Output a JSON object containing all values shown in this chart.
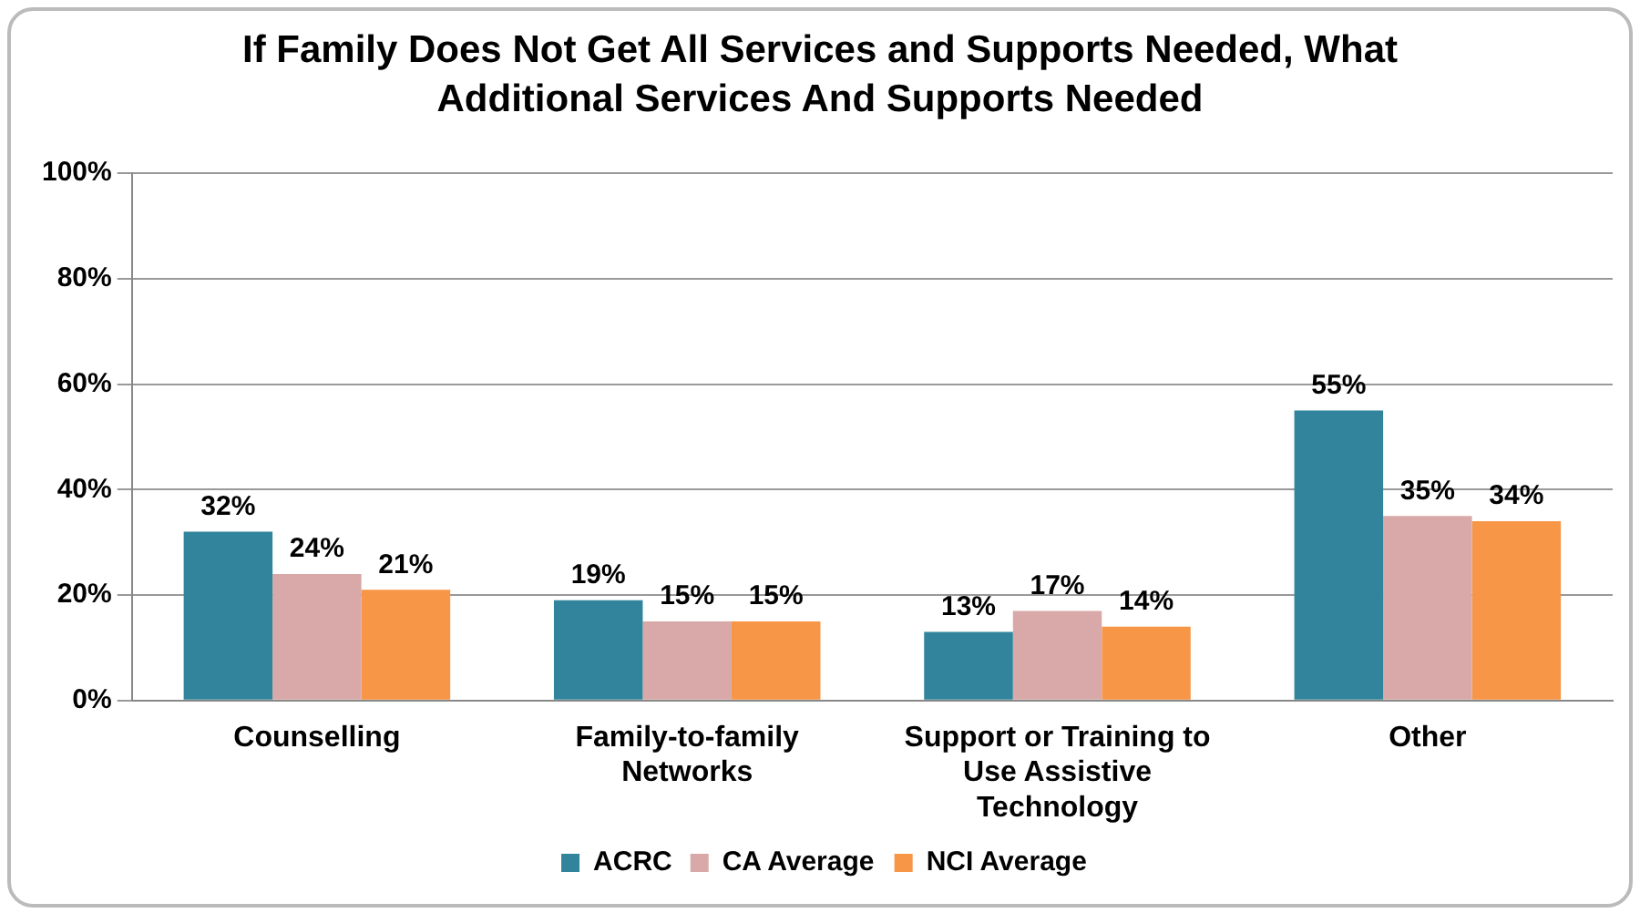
{
  "chart_data": {
    "type": "bar",
    "title": "If Family Does Not Get All Services and Supports Needed, What Additional Services And Supports Needed",
    "categories": [
      "Counselling",
      "Family-to-family Networks",
      "Support or Training to Use Assistive Technology",
      "Other"
    ],
    "series": [
      {
        "name": "ACRC",
        "color": "#31849b",
        "values": [
          32,
          19,
          13,
          55
        ],
        "value_labels": [
          "32%",
          "19%",
          "13%",
          "55%"
        ]
      },
      {
        "name": "CA Average",
        "color": "#d9a9a9",
        "values": [
          24,
          15,
          17,
          35
        ],
        "value_labels": [
          "24%",
          "15%",
          "17%",
          "35%"
        ]
      },
      {
        "name": "NCI Average",
        "color": "#f79646",
        "values": [
          21,
          15,
          14,
          34
        ],
        "value_labels": [
          "21%",
          "15%",
          "14%",
          "34%"
        ]
      }
    ],
    "ylim": [
      0,
      100
    ],
    "yticks": [
      {
        "value": 0,
        "label": "0%"
      },
      {
        "value": 20,
        "label": "20%"
      },
      {
        "value": 40,
        "label": "40%"
      },
      {
        "value": 60,
        "label": "60%"
      },
      {
        "value": 80,
        "label": "80%"
      },
      {
        "value": 100,
        "label": "100%"
      }
    ],
    "grid": "y",
    "legend": "bottom"
  }
}
